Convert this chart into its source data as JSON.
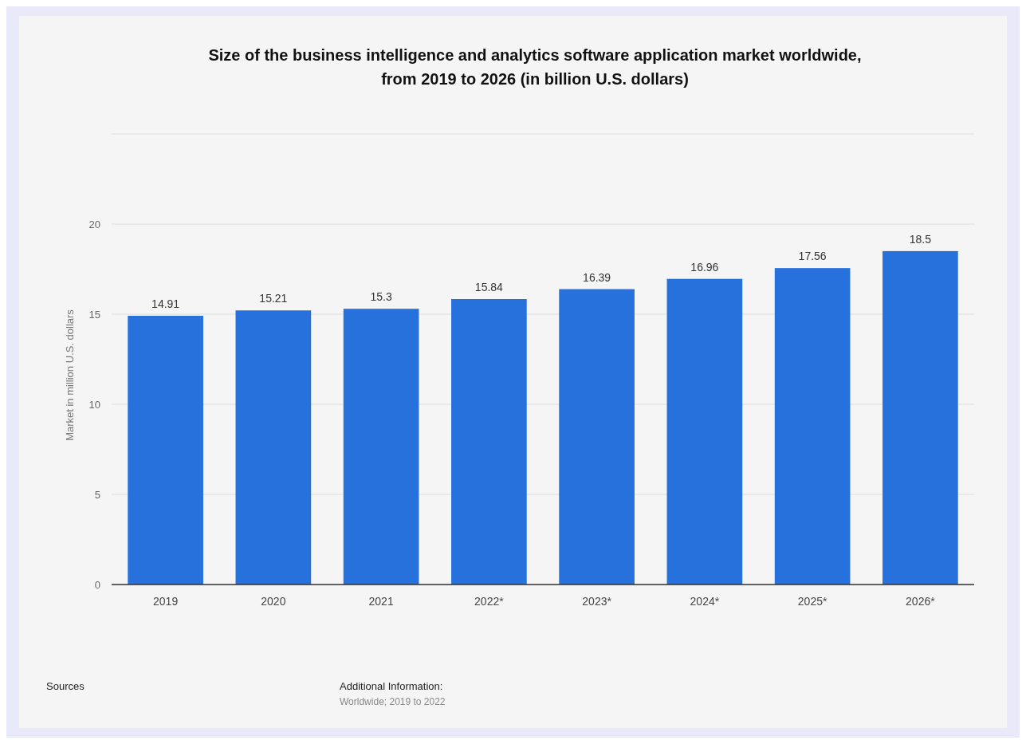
{
  "chart_data": {
    "type": "bar",
    "title": "Size of the business intelligence and analytics software application market worldwide, from 2019 to 2026 (in billion U.S. dollars)",
    "ylabel": "Market in million U.S. dollars",
    "categories": [
      "2019",
      "2020",
      "2021",
      "2022*",
      "2023*",
      "2024*",
      "2025*",
      "2026*"
    ],
    "values": [
      14.91,
      15.21,
      15.3,
      15.84,
      16.39,
      16.96,
      17.56,
      18.5
    ],
    "color": "#2771dc",
    "ylim": [
      0,
      25
    ],
    "yticks": [
      0,
      5,
      10,
      15,
      20,
      {
        "value": 25,
        "label": null
      }
    ],
    "grid": "y",
    "data_labels": true,
    "annotations": [
      "Sources",
      "Additional Information:",
      "Worldwide; 2019 to 2022"
    ]
  }
}
